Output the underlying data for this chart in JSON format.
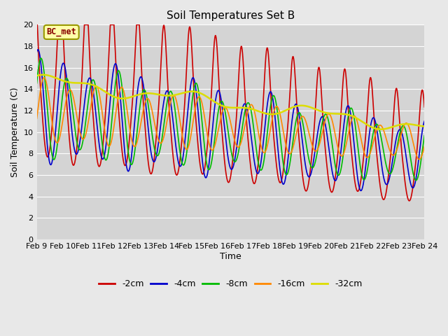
{
  "title": "Soil Temperatures Set B",
  "xlabel": "Time",
  "ylabel": "Soil Temperature (C)",
  "annotation": "BC_met",
  "ylim": [
    0,
    20
  ],
  "xlim": [
    0,
    360
  ],
  "background_color": "#e8e8e8",
  "plot_bg_color": "#d4d4d4",
  "grid_color": "#ffffff",
  "series": {
    "-2cm": {
      "color": "#cc0000",
      "lw": 1.2
    },
    "-4cm": {
      "color": "#0000cc",
      "lw": 1.2
    },
    "-8cm": {
      "color": "#00bb00",
      "lw": 1.2
    },
    "-16cm": {
      "color": "#ff8800",
      "lw": 1.2
    },
    "-32cm": {
      "color": "#dddd00",
      "lw": 1.8
    }
  },
  "x_tick_labels": [
    "Feb 9",
    "Feb 10",
    "Feb 11",
    "Feb 12",
    "Feb 13",
    "Feb 14",
    "Feb 15",
    "Feb 16",
    "Feb 17",
    "Feb 18",
    "Feb 19",
    "Feb 20",
    "Feb 21",
    "Feb 22",
    "Feb 23",
    "Feb 24"
  ],
  "x_tick_positions": [
    0,
    24,
    48,
    72,
    96,
    120,
    144,
    168,
    192,
    216,
    240,
    264,
    288,
    312,
    336,
    360
  ],
  "yticks": [
    0,
    2,
    4,
    6,
    8,
    10,
    12,
    14,
    16,
    18,
    20
  ]
}
